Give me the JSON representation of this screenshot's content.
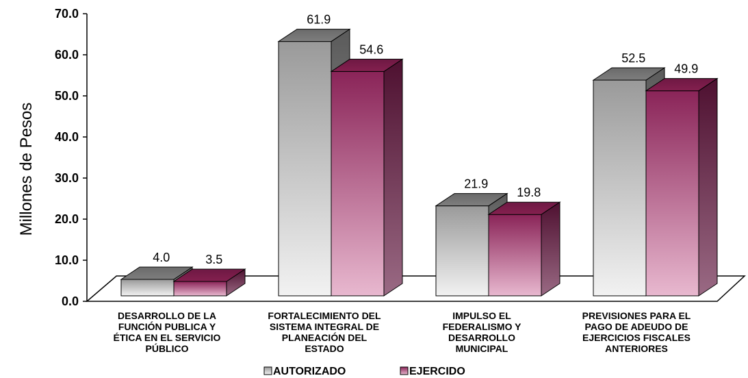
{
  "chart_data": {
    "type": "bar",
    "ylabel": "Millones de Pesos",
    "ylim": [
      0,
      70
    ],
    "yticks": [
      "0.0",
      "10.0",
      "20.0",
      "30.0",
      "40.0",
      "50.0",
      "60.0",
      "70.0"
    ],
    "categories": [
      [
        "DESARROLLO DE LA",
        "FUNCIÓN PUBLICA Y",
        "ÉTICA EN EL SERVICIO",
        "PÚBLICO"
      ],
      [
        "FORTALECIMIENTO DEL",
        "SISTEMA INTEGRAL DE",
        "PLANEACIÓN DEL",
        "ESTADO"
      ],
      [
        "IMPULSO EL",
        "FEDERALISMO Y",
        "DESARROLLO",
        "MUNICIPAL"
      ],
      [
        "PREVISIONES PARA EL",
        "PAGO DE ADEUDO DE",
        "EJERCICIOS FISCALES",
        "ANTERIORES"
      ]
    ],
    "series": [
      {
        "name": "AUTORIZADO",
        "values": [
          4.0,
          61.9,
          21.9,
          52.5
        ],
        "labels": [
          "4.0",
          "61.9",
          "21.9",
          "52.5"
        ],
        "color": "#a0a0a0"
      },
      {
        "name": "EJERCIDO",
        "values": [
          3.5,
          54.6,
          19.8,
          49.9
        ],
        "labels": [
          "3.5",
          "54.6",
          "19.8",
          "49.9"
        ],
        "color": "#8e2a5e"
      }
    ],
    "legend_position": "bottom",
    "grid": false
  }
}
